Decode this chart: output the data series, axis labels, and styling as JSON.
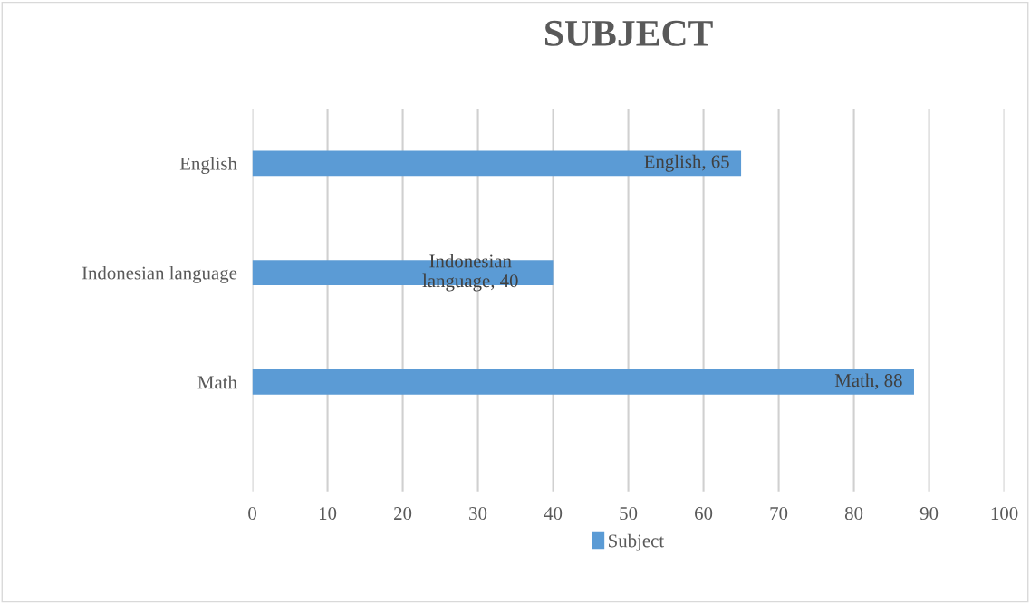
{
  "chart_data": {
    "type": "bar",
    "title": "SUBJECT",
    "orientation": "horizontal",
    "categories": [
      "English",
      "Indonesian language",
      "Math"
    ],
    "series": [
      {
        "name": "Subject",
        "color": "#5b9bd5",
        "values": [
          65,
          40,
          88
        ],
        "value_labels": [
          "English, 65",
          "Indonesian\nlanguage, 40",
          "Math, 88"
        ]
      }
    ],
    "xlim": [
      0,
      100
    ],
    "xticks": [
      0,
      10,
      20,
      30,
      40,
      50,
      60,
      70,
      80,
      90,
      100
    ],
    "grid": "x",
    "legend": "bottom"
  }
}
